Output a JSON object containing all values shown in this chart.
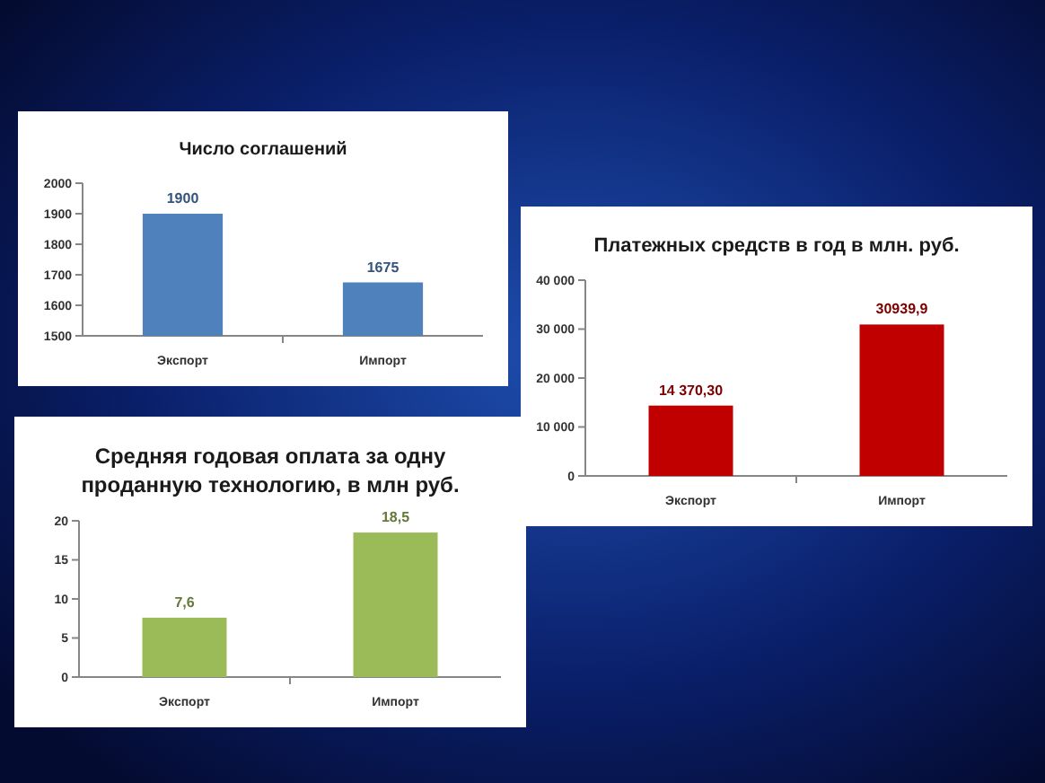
{
  "chart_data": [
    {
      "type": "bar",
      "title": "Число соглашений",
      "categories": [
        "Экспорт",
        "Импорт"
      ],
      "values": [
        1900,
        1675
      ],
      "color": "#4f81bd",
      "ylim": [
        1500,
        2000
      ],
      "yticks": [
        1500,
        1600,
        1700,
        1800,
        1900,
        2000
      ],
      "data_labels": true,
      "grid": false
    },
    {
      "type": "bar",
      "title": "Платежных средств в год в млн. руб.",
      "categories": [
        "Экспорт",
        "Импорт"
      ],
      "values": [
        14370.3,
        30939.9
      ],
      "value_labels": [
        "14 370,30",
        "30939,9"
      ],
      "color": "#c00000",
      "ylim": [
        0,
        40000
      ],
      "yticks": [
        0,
        {
          "value": 10000,
          "label": "10 000"
        },
        {
          "value": 20000,
          "label": "20 000"
        },
        {
          "value": 30000,
          "label": "30 000"
        },
        {
          "value": 40000,
          "label": "40 000"
        }
      ],
      "grid": false
    },
    {
      "type": "bar",
      "title": "Средняя годовая оплата за одну проданную технологию, в млн руб.",
      "categories": [
        "Экспорт",
        "Импорт"
      ],
      "values": [
        7.6,
        18.5
      ],
      "value_labels": [
        "7,6",
        "18,5"
      ],
      "color": "#9bbb59",
      "ylim": [
        0,
        20
      ],
      "yticks": [
        0,
        5,
        10,
        15,
        20
      ],
      "grid": false
    }
  ]
}
